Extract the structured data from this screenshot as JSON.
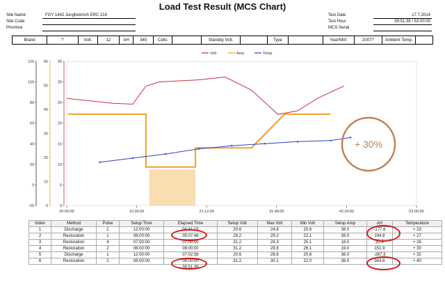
{
  "title": "Load Test Result (MCS Chart)",
  "left_info": [
    {
      "label": "Site Name",
      "value": "FGY 1442 Jungheinrich ERC 214"
    },
    {
      "label": "Site Code",
      "value": ""
    },
    {
      "label": "Province",
      "value": ""
    }
  ],
  "right_info": [
    {
      "label": "Test Date",
      "value": "17.7.2014"
    },
    {
      "label": "Test Hour",
      "value": "39:51:39 / 53:00:00"
    },
    {
      "label": "MCS Serial",
      "value": ""
    }
  ],
  "spec_bar": [
    "Brand",
    "?",
    "Volt.",
    "12",
    "AH",
    "345",
    "Cells",
    "",
    "Standby Volt.",
    "",
    "Type",
    "",
    "Year/Mnf.",
    "2007?",
    "Ambient Temp.",
    ""
  ],
  "annotation": "+ 30%",
  "colors": {
    "volt": "#c83040",
    "amp": "#f0a020",
    "temp": "#3040c0",
    "highlight": "#cc1a1a",
    "badge": "#c08050"
  },
  "chart_data": {
    "type": "line",
    "title": "",
    "legend": [
      "Volt",
      "Amp",
      "Temp"
    ],
    "legend_position": "top-center",
    "grid": false,
    "x_ticks": [
      "00:00:00",
      "10:36:00",
      "21:12:00",
      "31:48:00",
      "42:24:00",
      "53:00:00"
    ],
    "xlim": [
      0,
      53
    ],
    "axes": [
      {
        "name": "temp",
        "ticks": [
          -20,
          0,
          20,
          40,
          60,
          80,
          100,
          120
        ],
        "ylim": [
          -20,
          120
        ]
      },
      {
        "name": "amp",
        "ticks": [
          0,
          10,
          20,
          30,
          40,
          50,
          60
        ],
        "ylim": [
          0,
          60
        ]
      },
      {
        "name": "volt",
        "ticks": [
          0,
          5,
          10,
          15,
          20,
          25,
          30,
          35
        ],
        "ylim": [
          0,
          35
        ]
      }
    ],
    "series": [
      {
        "name": "Volt",
        "axis": "volt",
        "x": [
          0,
          3,
          7,
          10,
          12,
          14,
          20,
          24,
          28,
          32,
          35,
          38,
          42
        ],
        "y": [
          26,
          25.5,
          24.8,
          24.6,
          29,
          30,
          30.5,
          31.2,
          28,
          22.1,
          23,
          26,
          29
        ]
      },
      {
        "name": "Amp",
        "axis": "amp",
        "x": [
          0.2,
          12,
          12,
          19.5,
          19.5,
          28,
          33,
          33,
          40,
          40
        ],
        "y": [
          38,
          38,
          16,
          16,
          24,
          24,
          38,
          38,
          38,
          38
        ]
      },
      {
        "name": "Temp",
        "axis": "temp",
        "x": [
          5,
          10,
          15,
          20,
          25,
          30,
          35,
          40,
          43
        ],
        "y": [
          22,
          26,
          30,
          35,
          38,
          40,
          42,
          43,
          46
        ]
      }
    ],
    "shaded_band": {
      "axis": "amp",
      "x": [
        12.5,
        19.5
      ],
      "y": [
        0,
        15
      ]
    }
  },
  "table": {
    "headers": [
      "Index",
      "Method",
      "Pulse",
      "Setup Time",
      "Elapsed Time",
      "Setup Volt",
      "Max Volt",
      "Min Volt",
      "Setup Amp",
      "AH",
      "Temperature"
    ],
    "rows": [
      [
        "1",
        "Discharge",
        "1",
        "12:00:00",
        "04:41:15",
        "20.6",
        "24.8",
        "20.6",
        "38.0",
        "-177.6",
        "+ 23"
      ],
      [
        "2",
        "Restoration",
        "1",
        "08:00:00",
        "05:07:48",
        "29.2",
        "29.2",
        "22.1",
        "38.0",
        "194.8",
        "+ 27"
      ],
      [
        "3",
        "Restoration",
        "4",
        "07:00:00",
        "07:00:00",
        "31.2",
        "28.3",
        "25.1",
        "18.0",
        "20.9",
        "+ 28"
      ],
      [
        "4",
        "Restoration",
        "2",
        "08:00:00",
        "08:00:00",
        "31.2",
        "29.8",
        "26.1",
        "19.0",
        "151.9",
        "+ 30"
      ],
      [
        "5",
        "Discharge",
        "1",
        "12:00:00",
        "07:02:36",
        "20.6",
        "28.8",
        "20.6",
        "38.0",
        "-267.3",
        "+ 32"
      ],
      [
        "6",
        "Restoration",
        "2",
        "08:00:00",
        "08:00:00",
        "31.2",
        "30.1",
        "22.0",
        "38.0",
        "363.6",
        "+ 40"
      ]
    ],
    "total_elapsed": "39:51:39"
  }
}
